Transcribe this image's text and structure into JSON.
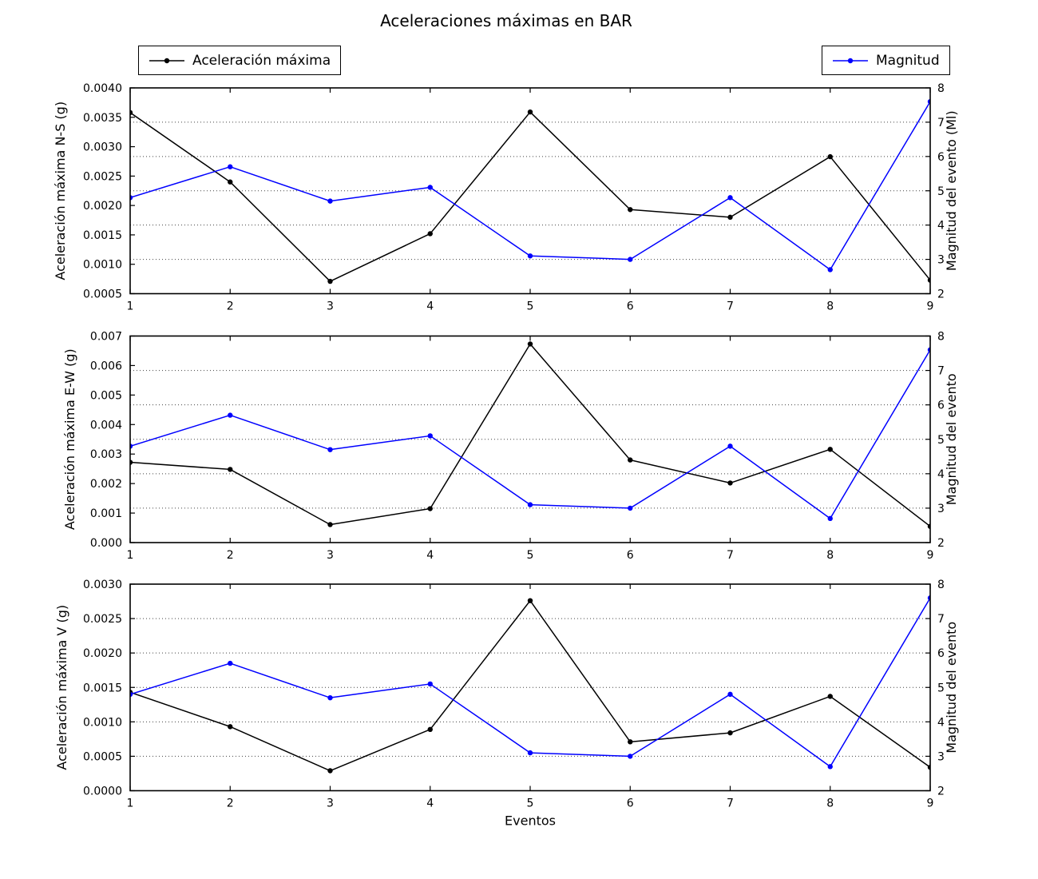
{
  "title": "Aceleraciones máximas en BAR",
  "xlabel": "Eventos",
  "legend_left": {
    "label": "Aceleración máxima",
    "color": "#000000"
  },
  "legend_right": {
    "label": "Magnitud",
    "color": "#0000ff"
  },
  "colors": {
    "accel": "#000000",
    "magnitud": "#0000ff",
    "grid": "#222222",
    "frame": "#000000"
  },
  "chart_data": [
    {
      "type": "line",
      "x": [
        1,
        2,
        3,
        4,
        5,
        6,
        7,
        8,
        9
      ],
      "xticks": [
        "1",
        "2",
        "3",
        "4",
        "5",
        "6",
        "7",
        "8",
        "9"
      ],
      "xlim": [
        1,
        9
      ],
      "ylabel_left": "Aceleración máxima N-S (g)",
      "ylabel_right": "Magnitud del evento (Ml)",
      "ylim_left": [
        0.0005,
        0.004
      ],
      "ylim_right": [
        2,
        8
      ],
      "yticks_left_labels": [
        "0.0005",
        "0.0010",
        "0.0015",
        "0.0020",
        "0.0025",
        "0.0030",
        "0.0035",
        "0.0040"
      ],
      "yticks_left_values": [
        0.0005,
        0.001,
        0.0015,
        0.002,
        0.0025,
        0.003,
        0.0035,
        0.004
      ],
      "yticks_right_labels": [
        "2",
        "3",
        "4",
        "5",
        "6",
        "7",
        "8"
      ],
      "yticks_right_values": [
        2,
        3,
        4,
        5,
        6,
        7,
        8
      ],
      "grid_right_values": [
        3,
        4,
        5,
        6,
        7
      ],
      "grid_style": "dotted-horizontal",
      "series": [
        {
          "name": "Aceleración máxima",
          "axis": "left",
          "color": "#000000",
          "values": [
            0.00358,
            0.0024,
            0.00071,
            0.00152,
            0.00359,
            0.00193,
            0.0018,
            0.00283,
            0.00073
          ]
        },
        {
          "name": "Magnitud",
          "axis": "right",
          "color": "#0000ff",
          "values": [
            4.8,
            5.7,
            4.7,
            5.1,
            3.1,
            3.0,
            4.8,
            2.7,
            7.6
          ]
        }
      ]
    },
    {
      "type": "line",
      "x": [
        1,
        2,
        3,
        4,
        5,
        6,
        7,
        8,
        9
      ],
      "xticks": [
        "1",
        "2",
        "3",
        "4",
        "5",
        "6",
        "7",
        "8",
        "9"
      ],
      "xlim": [
        1,
        9
      ],
      "ylabel_left": "Aceleración máxima E-W (g)",
      "ylabel_right": "Magnitud del evento",
      "ylim_left": [
        0.0,
        0.007
      ],
      "ylim_right": [
        2,
        8
      ],
      "yticks_left_labels": [
        "0.000",
        "0.001",
        "0.002",
        "0.003",
        "0.004",
        "0.005",
        "0.006",
        "0.007"
      ],
      "yticks_left_values": [
        0.0,
        0.001,
        0.002,
        0.003,
        0.004,
        0.005,
        0.006,
        0.007
      ],
      "yticks_right_labels": [
        "2",
        "3",
        "4",
        "5",
        "6",
        "7",
        "8"
      ],
      "yticks_right_values": [
        2,
        3,
        4,
        5,
        6,
        7,
        8
      ],
      "grid_right_values": [
        3,
        4,
        5,
        6,
        7
      ],
      "grid_style": "dotted-horizontal",
      "series": [
        {
          "name": "Aceleración máxima",
          "axis": "left",
          "color": "#000000",
          "values": [
            0.00272,
            0.00248,
            0.00061,
            0.00115,
            0.00673,
            0.0028,
            0.00202,
            0.00316,
            0.00055
          ]
        },
        {
          "name": "Magnitud",
          "axis": "right",
          "color": "#0000ff",
          "values": [
            4.8,
            5.7,
            4.7,
            5.1,
            3.1,
            3.0,
            4.8,
            2.7,
            7.6
          ]
        }
      ]
    },
    {
      "type": "line",
      "x": [
        1,
        2,
        3,
        4,
        5,
        6,
        7,
        8,
        9
      ],
      "xticks": [
        "1",
        "2",
        "3",
        "4",
        "5",
        "6",
        "7",
        "8",
        "9"
      ],
      "xlim": [
        1,
        9
      ],
      "xlabel": "Eventos",
      "ylabel_left": "Aceleración máxima V (g)",
      "ylabel_right": "Magnitud del evento",
      "ylim_left": [
        0.0,
        0.003
      ],
      "ylim_right": [
        2,
        8
      ],
      "yticks_left_labels": [
        "0.0000",
        "0.0005",
        "0.0010",
        "0.0015",
        "0.0020",
        "0.0025",
        "0.0030"
      ],
      "yticks_left_values": [
        0.0,
        0.0005,
        0.001,
        0.0015,
        0.002,
        0.0025,
        0.003
      ],
      "yticks_right_labels": [
        "2",
        "3",
        "4",
        "5",
        "6",
        "7",
        "8"
      ],
      "yticks_right_values": [
        2,
        3,
        4,
        5,
        6,
        7,
        8
      ],
      "grid_right_values": [
        3,
        4,
        5,
        6,
        7
      ],
      "grid_style": "dotted-horizontal",
      "series": [
        {
          "name": "Aceleración máxima",
          "axis": "left",
          "color": "#000000",
          "values": [
            0.00143,
            0.00093,
            0.00029,
            0.00089,
            0.00276,
            0.00071,
            0.00084,
            0.00137,
            0.00034
          ]
        },
        {
          "name": "Magnitud",
          "axis": "right",
          "color": "#0000ff",
          "values": [
            4.8,
            5.7,
            4.7,
            5.1,
            3.1,
            3.0,
            4.8,
            2.7,
            7.6
          ]
        }
      ]
    }
  ]
}
